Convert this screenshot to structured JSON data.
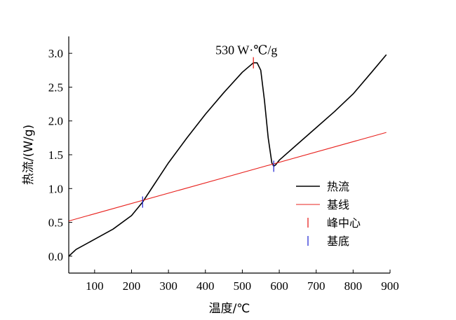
{
  "chart_data": {
    "type": "line",
    "xlabel": "温度/℃",
    "ylabel": "热流/(W/g)",
    "xlim": [
      30,
      900
    ],
    "ylim": [
      -0.25,
      3.25
    ],
    "xticks": [
      100,
      200,
      300,
      400,
      500,
      600,
      700,
      800,
      900
    ],
    "yticks": [
      0.0,
      0.5,
      1.0,
      1.5,
      2.0,
      2.5,
      3.0
    ],
    "ytick_labels": [
      "0.0",
      "0.5",
      "1.0",
      "1.5",
      "2.0",
      "2.5",
      "3.0"
    ],
    "grid": false,
    "legend_position": "right",
    "series": [
      {
        "name": "热流",
        "color": "#000000",
        "x": [
          30,
          50,
          100,
          150,
          200,
          230,
          260,
          300,
          350,
          400,
          450,
          500,
          530,
          540,
          550,
          560,
          570,
          580,
          585,
          590,
          600,
          650,
          700,
          750,
          800,
          850,
          890
        ],
        "y": [
          0.0,
          0.1,
          0.25,
          0.4,
          0.6,
          0.8,
          1.05,
          1.38,
          1.75,
          2.1,
          2.42,
          2.72,
          2.86,
          2.86,
          2.75,
          2.3,
          1.75,
          1.38,
          1.33,
          1.35,
          1.42,
          1.66,
          1.9,
          2.14,
          2.4,
          2.72,
          2.98
        ]
      },
      {
        "name": "基线",
        "color": "#e8231f",
        "x": [
          30,
          890
        ],
        "y": [
          0.52,
          1.83
        ]
      }
    ],
    "markers": [
      {
        "name": "峰中心",
        "color": "#e8231f",
        "x": 530,
        "y": 2.86
      },
      {
        "name": "基底",
        "color": "#2a2fd6",
        "x": 230,
        "y": 0.8
      },
      {
        "name": "基底",
        "color": "#2a2fd6",
        "x": 585,
        "y": 1.33
      }
    ],
    "annotations": [
      {
        "text": "530 W·℃/g",
        "x": 530,
        "y": 2.86
      }
    ]
  }
}
